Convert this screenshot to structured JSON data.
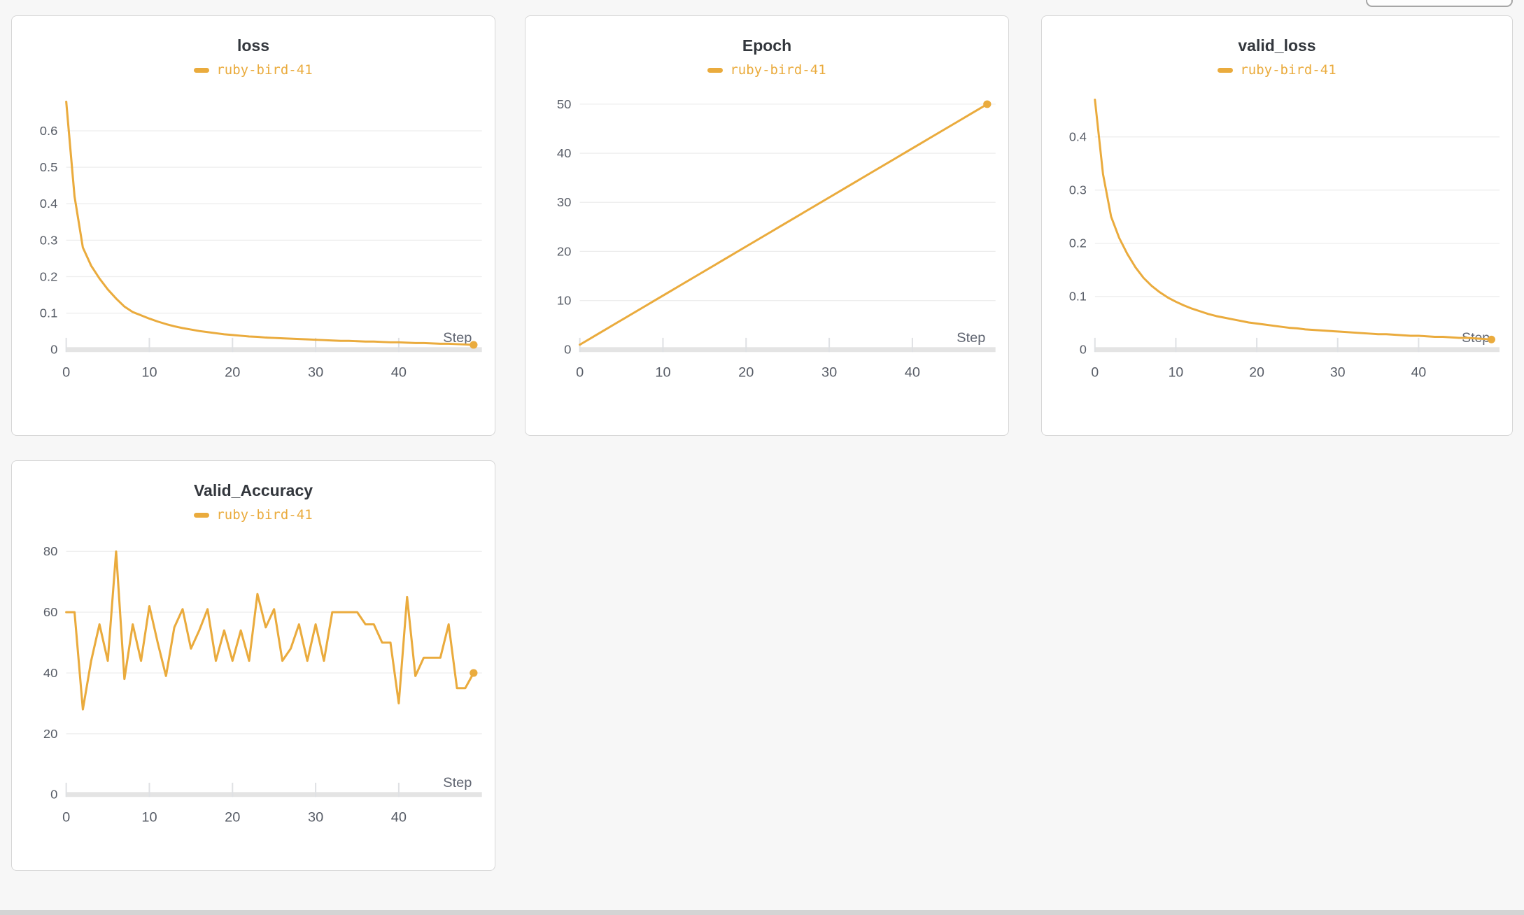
{
  "page": {
    "background": "#f7f7f7",
    "accent_color": "#eaab3d",
    "card_border": "#d6d6d6",
    "grid_color": "#ededed",
    "axis_band_color": "#e4e4e4",
    "tick_mark_color": "#dfe1e4",
    "tick_label_color": "#575c66",
    "step_label_color": "#5f6470",
    "title_color": "#33373d",
    "scrollbar_color": "#d4d4d4"
  },
  "run": {
    "name": "ruby-bird-41"
  },
  "chart_data": [
    {
      "type": "line",
      "title": "loss",
      "xlabel": "Step",
      "legend_position": "top",
      "grid": true,
      "end_marker": true,
      "xticks": [
        0,
        10,
        20,
        30,
        40
      ],
      "yticks": [
        0,
        0.1,
        0.2,
        0.3,
        0.4,
        0.5,
        0.6
      ],
      "xlim": [
        0,
        50
      ],
      "ylim": [
        0,
        0.7
      ],
      "series": [
        {
          "name": "ruby-bird-41",
          "x_start": 0,
          "values": [
            0.68,
            0.42,
            0.28,
            0.23,
            0.195,
            0.165,
            0.14,
            0.118,
            0.103,
            0.094,
            0.085,
            0.077,
            0.07,
            0.064,
            0.059,
            0.055,
            0.051,
            0.048,
            0.045,
            0.042,
            0.04,
            0.038,
            0.036,
            0.035,
            0.033,
            0.032,
            0.031,
            0.03,
            0.029,
            0.028,
            0.027,
            0.026,
            0.025,
            0.024,
            0.024,
            0.023,
            0.022,
            0.022,
            0.021,
            0.02,
            0.02,
            0.019,
            0.018,
            0.018,
            0.017,
            0.016,
            0.016,
            0.015,
            0.014,
            0.013
          ]
        }
      ]
    },
    {
      "type": "line",
      "title": "Epoch",
      "xlabel": "Step",
      "legend_position": "top",
      "grid": true,
      "end_marker": true,
      "xticks": [
        0,
        10,
        20,
        30,
        40
      ],
      "yticks": [
        0,
        10,
        20,
        30,
        40,
        50
      ],
      "xlim": [
        0,
        50
      ],
      "ylim": [
        0,
        52
      ],
      "series": [
        {
          "name": "ruby-bird-41",
          "x_start": 0,
          "values": [
            1,
            2,
            3,
            4,
            5,
            6,
            7,
            8,
            9,
            10,
            11,
            12,
            13,
            14,
            15,
            16,
            17,
            18,
            19,
            20,
            21,
            22,
            23,
            24,
            25,
            26,
            27,
            28,
            29,
            30,
            31,
            32,
            33,
            34,
            35,
            36,
            37,
            38,
            39,
            40,
            41,
            42,
            43,
            44,
            45,
            46,
            47,
            48,
            49,
            50
          ]
        }
      ]
    },
    {
      "type": "line",
      "title": "valid_loss",
      "xlabel": "Step",
      "legend_position": "top",
      "grid": true,
      "end_marker": true,
      "xticks": [
        0,
        10,
        20,
        30,
        40
      ],
      "yticks": [
        0,
        0.1,
        0.2,
        0.3,
        0.4
      ],
      "xlim": [
        0,
        50
      ],
      "ylim": [
        0,
        0.48
      ],
      "series": [
        {
          "name": "ruby-bird-41",
          "x_start": 0,
          "values": [
            0.47,
            0.33,
            0.25,
            0.21,
            0.18,
            0.155,
            0.135,
            0.12,
            0.108,
            0.098,
            0.09,
            0.083,
            0.077,
            0.072,
            0.067,
            0.063,
            0.06,
            0.057,
            0.054,
            0.051,
            0.049,
            0.047,
            0.045,
            0.043,
            0.041,
            0.04,
            0.038,
            0.037,
            0.036,
            0.035,
            0.034,
            0.033,
            0.032,
            0.031,
            0.03,
            0.029,
            0.029,
            0.028,
            0.027,
            0.026,
            0.026,
            0.025,
            0.024,
            0.024,
            0.023,
            0.022,
            0.022,
            0.021,
            0.02,
            0.019
          ]
        }
      ]
    },
    {
      "type": "line",
      "title": "Valid_Accuracy",
      "xlabel": "Step",
      "legend_position": "top",
      "grid": true,
      "end_marker": true,
      "xticks": [
        0,
        10,
        20,
        30,
        40
      ],
      "yticks": [
        0,
        20,
        40,
        60,
        80
      ],
      "xlim": [
        0,
        50
      ],
      "ylim": [
        0,
        84
      ],
      "series": [
        {
          "name": "ruby-bird-41",
          "x_start": 0,
          "values": [
            60,
            60,
            28,
            44,
            56,
            44,
            80,
            38,
            56,
            44,
            62,
            50,
            39,
            55,
            61,
            48,
            54,
            61,
            44,
            54,
            44,
            54,
            44,
            66,
            55,
            61,
            44,
            48,
            56,
            44,
            56,
            44,
            60,
            60,
            60,
            60,
            56,
            56,
            50,
            50,
            30,
            65,
            39,
            45,
            45,
            45,
            56,
            35,
            35,
            40
          ]
        }
      ]
    }
  ]
}
